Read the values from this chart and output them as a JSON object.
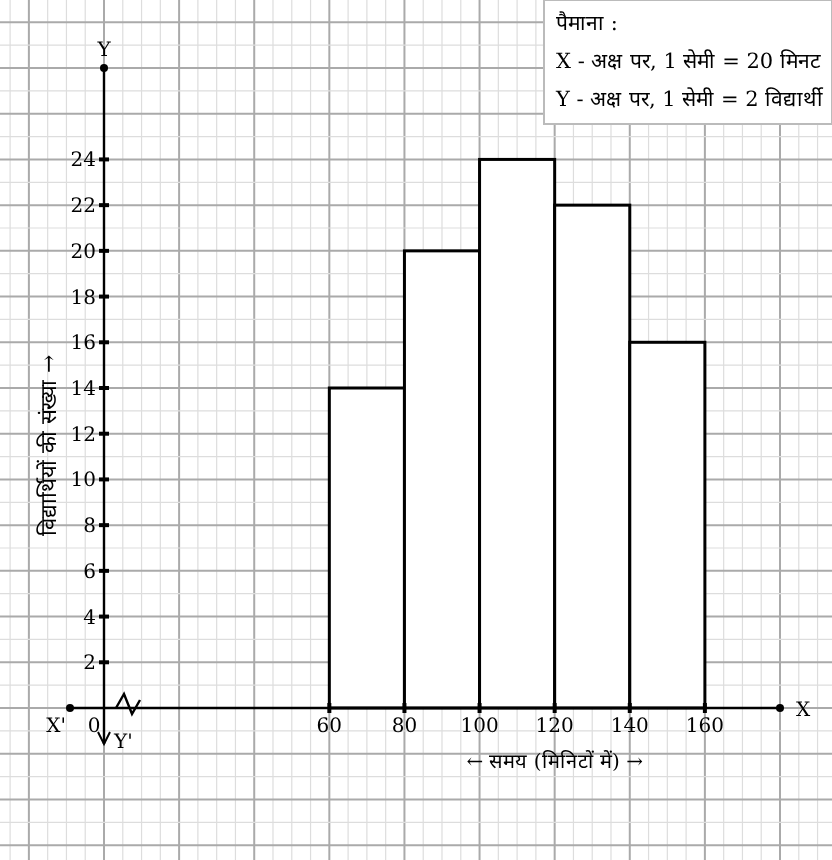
{
  "chart_data": {
    "type": "histogram",
    "bins": [
      60,
      80,
      100,
      120,
      140,
      160
    ],
    "values": [
      14,
      20,
      24,
      22,
      16
    ],
    "color": "#ffffff",
    "xlim": [
      0,
      180
    ],
    "ylim": [
      0,
      28
    ],
    "xticks": [
      0,
      60,
      80,
      100,
      120,
      140,
      160
    ],
    "yticks": [
      2,
      4,
      6,
      8,
      10,
      12,
      14,
      16,
      18,
      20,
      22,
      24
    ],
    "xlabel": "← समय (मिनिटों में) →",
    "ylabel": "विद्यार्थियों की संख्या →",
    "grid": true,
    "annotations": [
      "पैमाना :",
      "X - अक्ष पर, 1 सेमी = 20 मिनट",
      "Y - अक्ष पर, 1 सेमी = 2 विद्यार्थी",
      "X",
      "X'",
      "Y",
      "Y'"
    ]
  }
}
